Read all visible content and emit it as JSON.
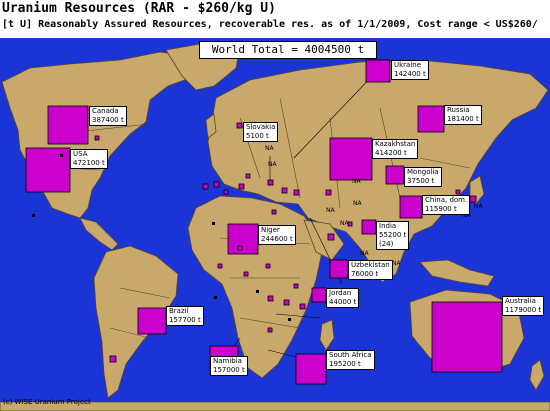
{
  "title": "Uranium Resources (RAR - $260/kg U)",
  "subtitle": "[t U] Reasonably Assured Resources, recoverable res. as of 1/1/2009, Cost range < US$260/",
  "world_total": "World Total = 4004500 t",
  "copyright": "(c) WISE Uranium Project",
  "colors": {
    "ocean": "#1a34d6",
    "land": "#c9a86c",
    "border": "#5a4526",
    "marker": "#cc00cc",
    "marker_border": "#000000",
    "label_bg": "#ffffff"
  },
  "labels": [
    {
      "id": "ukraine",
      "name": "Ukraine",
      "value": "142400 t"
    },
    {
      "id": "canada",
      "name": "Canada",
      "value": "387400 t"
    },
    {
      "id": "usa",
      "name": "USA",
      "value": "472100 t"
    },
    {
      "id": "slovakia",
      "name": "Slovakia",
      "value": "5100 t"
    },
    {
      "id": "russia",
      "name": "Russia",
      "value": "181400 t"
    },
    {
      "id": "kazakhstan",
      "name": "Kazakhstan",
      "value": "414200 t"
    },
    {
      "id": "mongolia",
      "name": "Mongolia",
      "value": "37500 t"
    },
    {
      "id": "china",
      "name": "China, dom.",
      "value": "115900 t"
    },
    {
      "id": "niger",
      "name": "Niger",
      "value": "244600 t"
    },
    {
      "id": "india",
      "name": "India",
      "value": "55200 t",
      "extra": "(24)"
    },
    {
      "id": "uzbekistan",
      "name": "Uzbekistan",
      "value": "76000 t"
    },
    {
      "id": "jordan",
      "name": "Jordan",
      "value": "44000 t"
    },
    {
      "id": "brazil",
      "name": "Brazil",
      "value": "157700 t"
    },
    {
      "id": "australia",
      "name": "Australia",
      "value": "1179000 t"
    },
    {
      "id": "namibia",
      "name": "Namibia",
      "value": "157000 t"
    },
    {
      "id": "south-africa",
      "name": "South Africa",
      "value": "195200 t"
    }
  ],
  "na_marker": "NA"
}
